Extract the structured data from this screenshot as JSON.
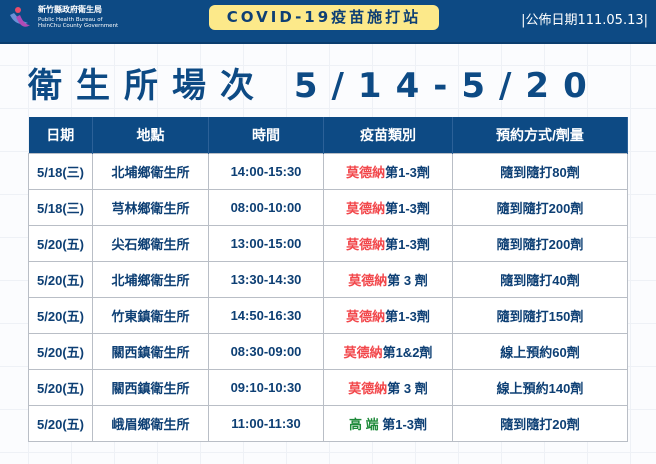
{
  "header": {
    "org_zh": "新竹縣政府衛生局",
    "org_en_line1": "Public Health Bureau of",
    "org_en_line2": "HsinChu County Government",
    "banner": "COVID-19疫苗施打站",
    "publish_date": "|公佈日期111.05.13|"
  },
  "title": "衛生所場次 5/14-5/20",
  "colors": {
    "primary": "#0d4a84",
    "banner_bg": "#fce98a",
    "moderna": "#f2474b",
    "medigen": "#1e8a3a"
  },
  "table": {
    "columns": [
      "日期",
      "地點",
      "時間",
      "疫苗類別",
      "預約方式/劑量"
    ],
    "rows": [
      {
        "date": "5/18(三)",
        "place": "北埔鄉衛生所",
        "time": "14:00-15:30",
        "brand": "莫德納",
        "brand_color": "red",
        "dose": "第1-3劑",
        "booking": "隨到隨打80劑"
      },
      {
        "date": "5/18(三)",
        "place": "芎林鄉衛生所",
        "time": "08:00-10:00",
        "brand": "莫德納",
        "brand_color": "red",
        "dose": "第1-3劑",
        "booking": "隨到隨打200劑"
      },
      {
        "date": "5/20(五)",
        "place": "尖石鄉衛生所",
        "time": "13:00-15:00",
        "brand": "莫德納",
        "brand_color": "red",
        "dose": "第1-3劑",
        "booking": "隨到隨打200劑"
      },
      {
        "date": "5/20(五)",
        "place": "北埔鄉衛生所",
        "time": "13:30-14:30",
        "brand": "莫德納",
        "brand_color": "red",
        "dose": "第 3 劑",
        "booking": "隨到隨打40劑"
      },
      {
        "date": "5/20(五)",
        "place": "竹東鎮衛生所",
        "time": "14:50-16:30",
        "brand": "莫德納",
        "brand_color": "red",
        "dose": "第1-3劑",
        "booking": "隨到隨打150劑"
      },
      {
        "date": "5/20(五)",
        "place": "關西鎮衛生所",
        "time": "08:30-09:00",
        "brand": "莫德納",
        "brand_color": "red",
        "dose": "第1&2劑",
        "booking": "線上預約60劑"
      },
      {
        "date": "5/20(五)",
        "place": "關西鎮衛生所",
        "time": "09:10-10:30",
        "brand": "莫德納",
        "brand_color": "red",
        "dose": "第 3 劑",
        "booking": "線上預約140劑"
      },
      {
        "date": "5/20(五)",
        "place": "峨眉鄉衛生所",
        "time": "11:00-11:30",
        "brand": "高 端 ",
        "brand_color": "green",
        "dose": "第1-3劑",
        "booking": "隨到隨打20劑"
      }
    ]
  }
}
